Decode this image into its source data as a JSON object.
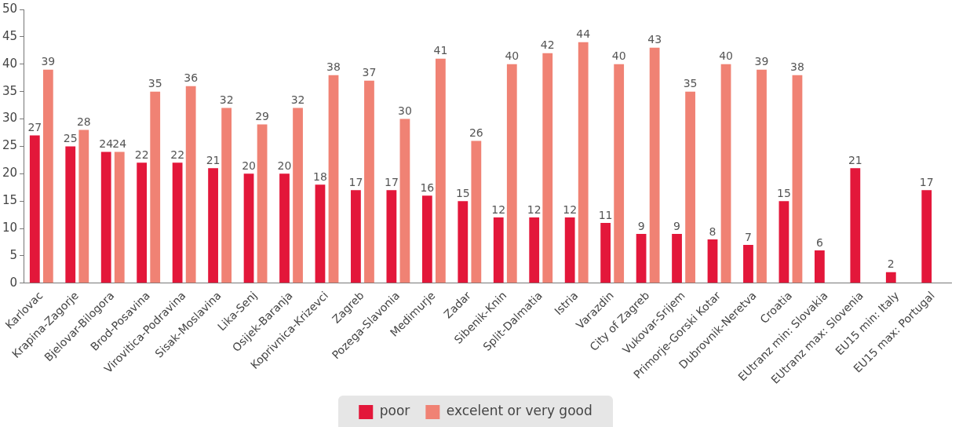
{
  "chart_data": {
    "type": "bar",
    "categories": [
      "Karlovac",
      "Krapina-Zagorje",
      "Bjelovar-Bilogora",
      "Brod-Posavina",
      "Virovitica-Podravina",
      "Sisak-Moslavina",
      "Lika-Senj",
      "Osijek-Baranja",
      "Koprivnica-Krizevci",
      "Zagreb",
      "Pozega-Slavonia",
      "Medimurje",
      "Zadar",
      "Sibenik-Knin",
      "Split-Dalmatia",
      "Istria",
      "Varazdin",
      "City of Zagreb",
      "Vukovar-Srijem",
      "Primorje-Gorski Kotar",
      "Dubrovnik-Neretva",
      "Croatia",
      "EUtranz min: Slovakia",
      "EUtranz max: Slovenia",
      "EU15 min: Italy",
      "EU15 max: Portugal"
    ],
    "series": [
      {
        "name": "poor",
        "color": "#e3173a",
        "values": [
          27,
          25,
          24,
          22,
          22,
          21,
          20,
          20,
          18,
          17,
          17,
          16,
          15,
          12,
          12,
          12,
          11,
          9,
          9,
          8,
          7,
          15,
          6,
          21,
          2,
          17
        ]
      },
      {
        "name": "excelent or very good",
        "color": "#f08274",
        "values": [
          39,
          28,
          24,
          35,
          36,
          32,
          29,
          32,
          38,
          37,
          30,
          41,
          26,
          40,
          42,
          44,
          40,
          43,
          35,
          40,
          39,
          38,
          null,
          null,
          null,
          null
        ]
      }
    ],
    "ylim": [
      0,
      50
    ],
    "yticks": [
      0,
      5,
      10,
      15,
      20,
      25,
      30,
      35,
      40,
      45,
      50
    ],
    "grid": false,
    "legend": "bottom",
    "data_labels": true
  }
}
